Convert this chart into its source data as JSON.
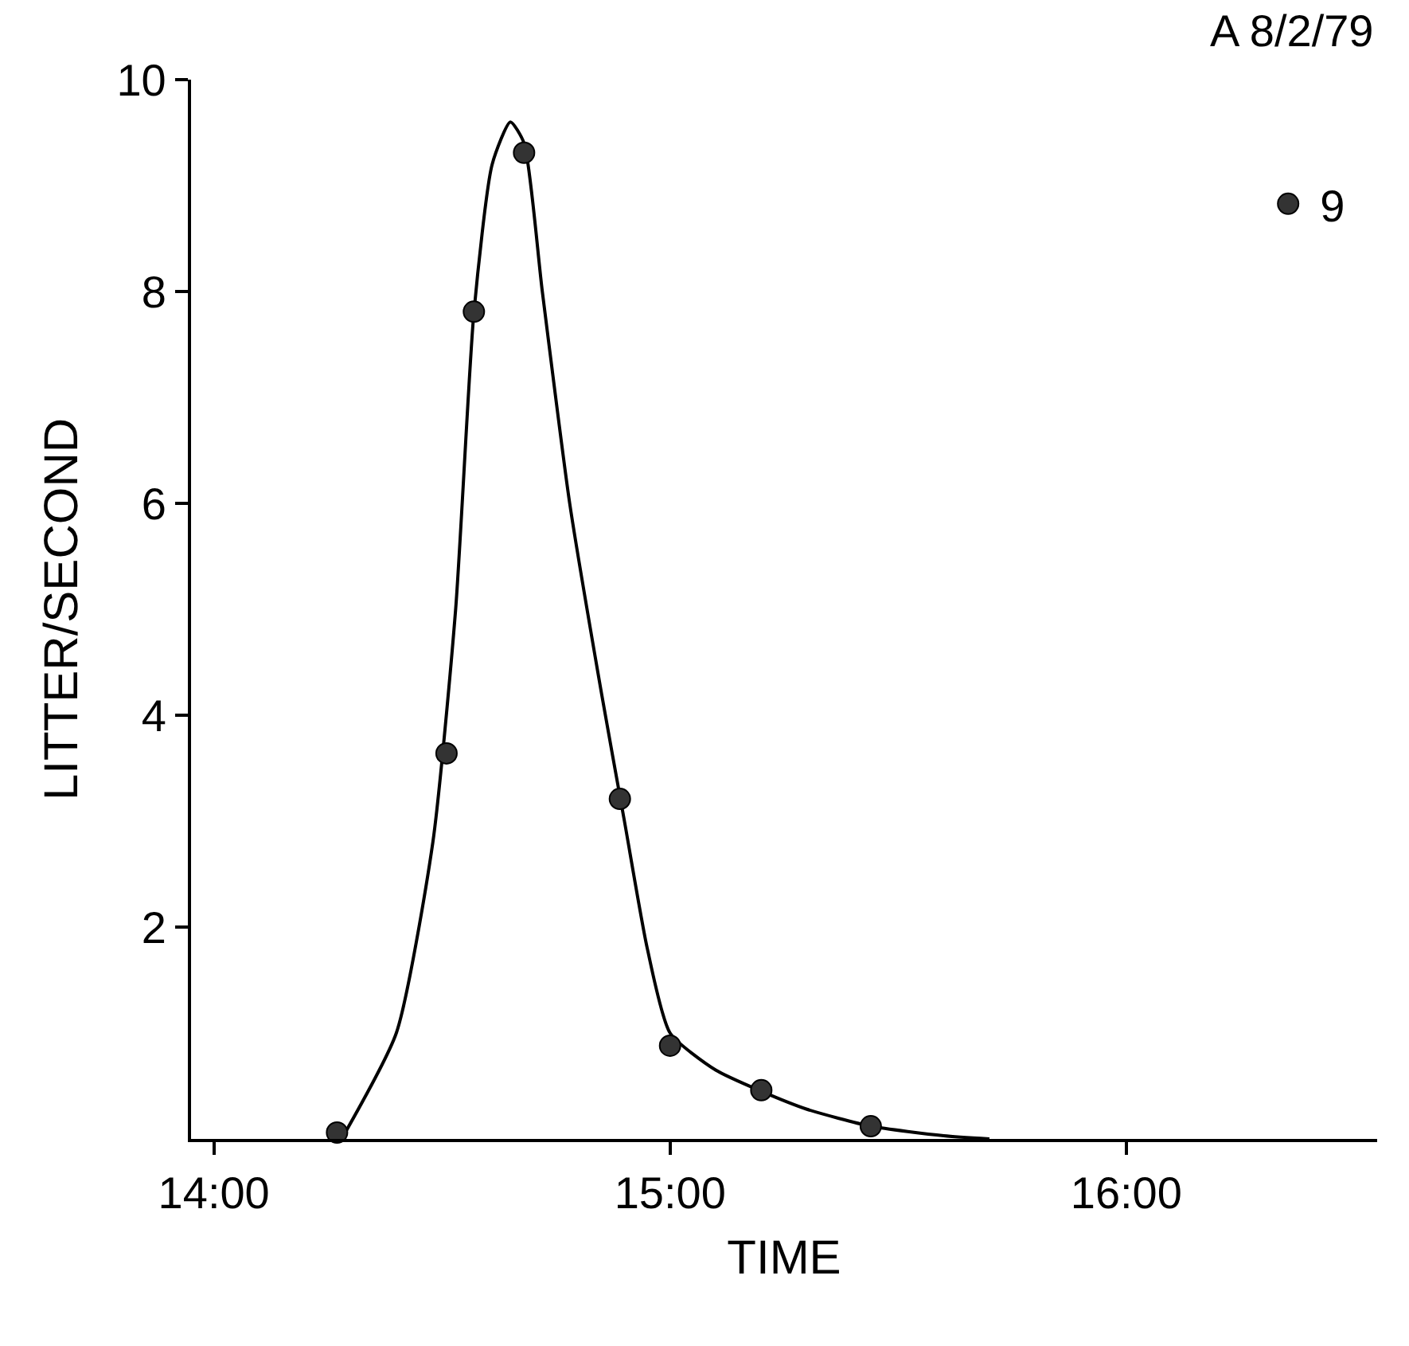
{
  "chart_data": {
    "type": "line",
    "xlabel": "TIME",
    "ylabel": "LITTER/SECOND",
    "annotations": [
      "A 8/2/79"
    ],
    "series": [
      {
        "color": "#000000",
        "marker": "none",
        "line_style": "solid",
        "x": [
          14.28,
          14.4,
          14.48,
          14.53,
          14.57,
          14.61,
          14.65,
          14.68,
          14.72,
          14.78,
          14.85,
          14.9,
          14.95,
          15.0,
          15.1,
          15.2,
          15.3,
          15.44,
          15.6,
          15.7
        ],
        "values": [
          0,
          1.0,
          2.8,
          5.0,
          7.8,
          9.2,
          9.6,
          9.4,
          8.0,
          6.0,
          4.2,
          3.0,
          1.8,
          1.0,
          0.65,
          0.45,
          0.28,
          0.12,
          0.03,
          0
        ]
      },
      {
        "type": "scatter",
        "name": "9",
        "color": "#333333",
        "marker": "circle",
        "x": [
          14.27,
          14.51,
          14.57,
          14.68,
          14.89,
          15.0,
          15.2,
          15.44
        ],
        "values": [
          0.06,
          3.64,
          7.81,
          9.31,
          3.21,
          0.88,
          0.46,
          0.12
        ]
      }
    ],
    "xlim": [
      13.95,
      16.55
    ],
    "xticks": [
      {
        "value": 14,
        "label": "14:00"
      },
      {
        "value": 15,
        "label": "15:00"
      },
      {
        "value": 16,
        "label": "16:00"
      }
    ],
    "ylim": [
      0,
      10
    ],
    "yticks": [
      2,
      4,
      6,
      8,
      10
    ],
    "legend": "top right"
  }
}
